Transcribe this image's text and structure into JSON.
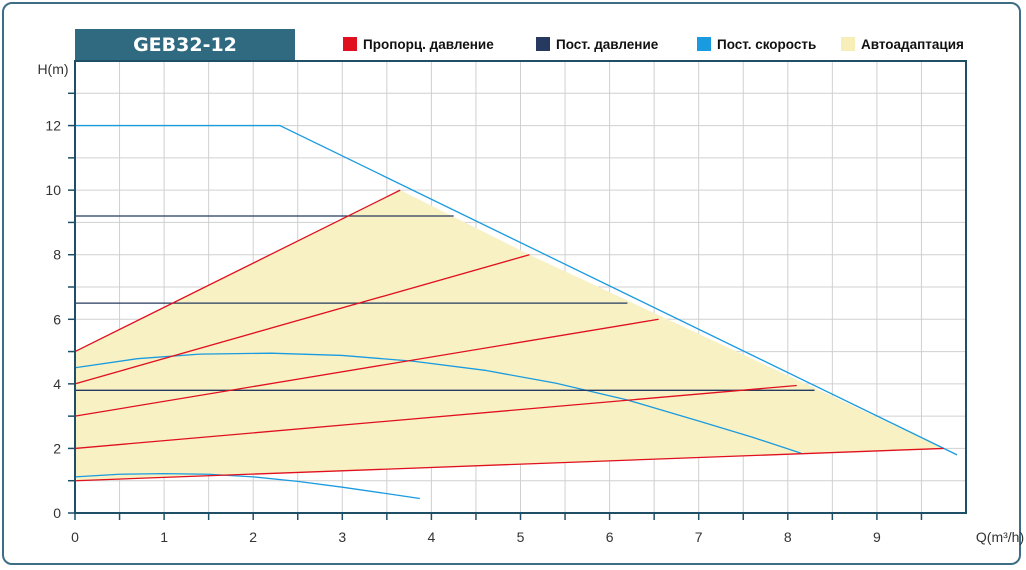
{
  "chart_data": {
    "type": "line",
    "title": "GEB32-12",
    "xlabel": "Q(m³/h)",
    "ylabel": "H(m)",
    "xlim": [
      0,
      10
    ],
    "ylim": [
      0,
      14
    ],
    "x_ticks": [
      "0",
      "1",
      "2",
      "3",
      "4",
      "5",
      "6",
      "7",
      "8",
      "9"
    ],
    "y_ticks": [
      "0",
      "2",
      "4",
      "6",
      "8",
      "10",
      "12"
    ],
    "grid": true,
    "legend_position": "top",
    "legend": [
      {
        "label": "Пропорц. давление",
        "color": "#e0101e"
      },
      {
        "label": "Пост. давление",
        "color": "#253a5e"
      },
      {
        "label": "Пост. скорость",
        "color": "#1a9be0"
      },
      {
        "label": "Автоадаптация",
        "color": "#f8efb8"
      }
    ],
    "colors": {
      "frame": "#3d6e86",
      "title_bg": "#2f6a80",
      "grid": "#d0d0d0",
      "axis": "#1f4f66",
      "area_fill": "#f8f1c4"
    },
    "autoadapt_area": {
      "x": [
        0,
        0,
        3.65,
        5.1,
        9.75,
        0
      ],
      "y": [
        1.0,
        5.0,
        10.0,
        8.0,
        2.0,
        1.0
      ]
    },
    "series": [
      {
        "group": "max_speed",
        "color": "#1a9be0",
        "x": [
          0,
          2.3,
          9.9
        ],
        "y": [
          12,
          12,
          1.8
        ]
      },
      {
        "group": "const_speed",
        "color": "#1a9be0",
        "x": [
          0,
          0.7,
          1.4,
          2.2,
          3.0,
          3.8,
          4.6,
          5.4,
          6.2,
          7.0,
          7.6,
          8.15
        ],
        "y": [
          4.5,
          4.78,
          4.92,
          4.95,
          4.88,
          4.7,
          4.42,
          4.02,
          3.5,
          2.85,
          2.35,
          1.85
        ]
      },
      {
        "group": "const_speed",
        "color": "#1a9be0",
        "x": [
          0,
          0.5,
          1.0,
          1.5,
          2.0,
          2.5,
          3.0,
          3.5,
          3.87
        ],
        "y": [
          1.12,
          1.2,
          1.22,
          1.2,
          1.12,
          0.98,
          0.8,
          0.6,
          0.45
        ]
      },
      {
        "group": "const_pressure",
        "color": "#253a5e",
        "x": [
          0,
          4.25
        ],
        "y": [
          9.2,
          9.2
        ]
      },
      {
        "group": "const_pressure",
        "color": "#253a5e",
        "x": [
          0,
          6.2
        ],
        "y": [
          6.5,
          6.5
        ]
      },
      {
        "group": "const_pressure",
        "color": "#253a5e",
        "x": [
          0,
          8.3
        ],
        "y": [
          3.8,
          3.8
        ]
      },
      {
        "group": "prop_pressure",
        "color": "#e0101e",
        "x": [
          0,
          3.65
        ],
        "y": [
          5.0,
          10.0
        ]
      },
      {
        "group": "prop_pressure",
        "color": "#e0101e",
        "x": [
          0,
          5.1
        ],
        "y": [
          4.0,
          8.0
        ]
      },
      {
        "group": "prop_pressure",
        "color": "#e0101e",
        "x": [
          0,
          6.55
        ],
        "y": [
          3.0,
          6.0
        ]
      },
      {
        "group": "prop_pressure",
        "color": "#e0101e",
        "x": [
          0,
          8.1
        ],
        "y": [
          2.0,
          3.95
        ]
      },
      {
        "group": "prop_pressure",
        "color": "#e0101e",
        "x": [
          0,
          9.75
        ],
        "y": [
          1.0,
          2.0
        ]
      }
    ]
  }
}
